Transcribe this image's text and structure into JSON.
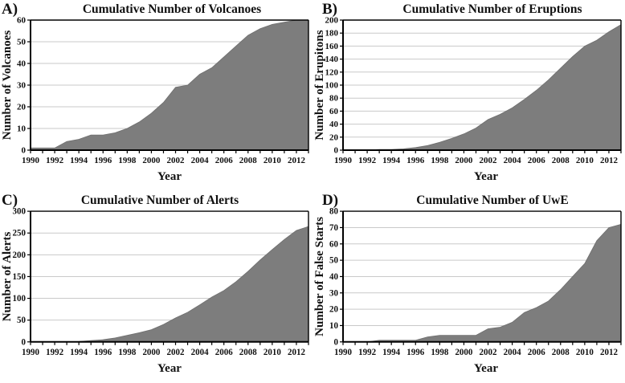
{
  "figure": {
    "background": "#ffffff",
    "layout": "2x2-grid"
  },
  "colors": {
    "area_fill": "#7d7d7d",
    "gridline": "#c9c9c9",
    "axis": "#000000",
    "text": "#111111"
  },
  "chart_data": [
    {
      "type": "area",
      "panel_label": "A)",
      "title": "Cumulative Number of Volcanoes",
      "xlabel": "Year",
      "ylabel": "Number of Volcanoes",
      "ylim": [
        0,
        60
      ],
      "ytick_step": 10,
      "xtick_label_step": 2,
      "grid": "horizontal",
      "legend": "none",
      "x": [
        1990,
        1991,
        1992,
        1993,
        1994,
        1995,
        1996,
        1997,
        1998,
        1999,
        2000,
        2001,
        2002,
        2003,
        2004,
        2005,
        2006,
        2007,
        2008,
        2009,
        2010,
        2011,
        2012,
        2013
      ],
      "values": [
        1,
        1,
        1,
        4,
        5,
        7,
        7,
        8,
        10,
        13,
        17,
        22,
        29,
        30,
        35,
        38,
        43,
        48,
        53,
        56,
        58,
        59,
        60,
        60
      ]
    },
    {
      "type": "area",
      "panel_label": "B)",
      "title": "Cumulative Number of Eruptions",
      "xlabel": "Year",
      "ylabel": "Number of Erupitons",
      "ylim": [
        0,
        200
      ],
      "ytick_step": 20,
      "xtick_label_step": 2,
      "grid": "horizontal",
      "legend": "none",
      "x": [
        1990,
        1991,
        1992,
        1993,
        1994,
        1995,
        1996,
        1997,
        1998,
        1999,
        2000,
        2001,
        2002,
        2003,
        2004,
        2005,
        2006,
        2007,
        2008,
        2009,
        2010,
        2011,
        2012,
        2013
      ],
      "values": [
        0,
        0,
        0,
        1,
        1,
        2,
        4,
        7,
        12,
        18,
        25,
        34,
        47,
        55,
        65,
        78,
        92,
        108,
        126,
        144,
        160,
        169,
        182,
        193
      ]
    },
    {
      "type": "area",
      "panel_label": "C)",
      "title": "Cumulative Number of Alerts",
      "xlabel": "Year",
      "ylabel": "Number of Alerts",
      "ylim": [
        0,
        300
      ],
      "ytick_step": 50,
      "xtick_label_step": 2,
      "grid": "horizontal",
      "legend": "none",
      "x": [
        1990,
        1991,
        1992,
        1993,
        1994,
        1995,
        1996,
        1997,
        1998,
        1999,
        2000,
        2001,
        2002,
        2003,
        2004,
        2005,
        2006,
        2007,
        2008,
        2009,
        2010,
        2011,
        2012,
        2013
      ],
      "values": [
        0,
        0,
        0,
        0,
        1,
        3,
        5,
        9,
        15,
        21,
        28,
        40,
        55,
        68,
        85,
        103,
        118,
        138,
        162,
        188,
        212,
        235,
        256,
        265
      ]
    },
    {
      "type": "area",
      "panel_label": "D)",
      "title": "Cumulative Number of UwE",
      "xlabel": "Year",
      "ylabel": "Number of False Starts",
      "ylim": [
        0,
        80
      ],
      "ytick_step": 10,
      "xtick_label_step": 2,
      "grid": "horizontal",
      "legend": "none",
      "x": [
        1990,
        1991,
        1992,
        1993,
        1994,
        1995,
        1996,
        1997,
        1998,
        1999,
        2000,
        2001,
        2002,
        2003,
        2004,
        2005,
        2006,
        2007,
        2008,
        2009,
        2010,
        2011,
        2012,
        2013
      ],
      "values": [
        0,
        0,
        0,
        1,
        1,
        1,
        1,
        3,
        4,
        4,
        4,
        4,
        8,
        9,
        12,
        18,
        21,
        25,
        32,
        40,
        48,
        62,
        70,
        72
      ]
    }
  ]
}
